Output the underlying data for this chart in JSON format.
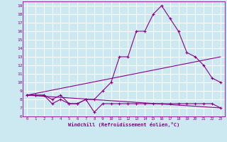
{
  "title": "",
  "xlabel": "Windchill (Refroidissement éolien,°C)",
  "bg_color": "#cce8f0",
  "line_color": "#880088",
  "grid_color": "#ffffff",
  "xlim": [
    -0.5,
    23.5
  ],
  "ylim": [
    6,
    19.5
  ],
  "xticks": [
    0,
    1,
    2,
    3,
    4,
    5,
    6,
    7,
    8,
    9,
    10,
    11,
    12,
    13,
    14,
    15,
    16,
    17,
    18,
    19,
    20,
    21,
    22,
    23
  ],
  "yticks": [
    6,
    7,
    8,
    9,
    10,
    11,
    12,
    13,
    14,
    15,
    16,
    17,
    18,
    19
  ],
  "curve1_x": [
    0,
    1,
    2,
    3,
    4,
    5,
    6,
    7,
    8,
    9,
    10,
    11,
    12,
    13,
    14,
    15,
    16,
    17,
    18,
    19,
    20,
    21,
    22,
    23
  ],
  "curve1_y": [
    8.5,
    8.5,
    8.5,
    8.0,
    8.5,
    7.5,
    7.5,
    8.0,
    8.0,
    9.0,
    10.0,
    13.0,
    13.0,
    16.0,
    16.0,
    18.0,
    19.0,
    17.5,
    16.0,
    13.5,
    13.0,
    12.0,
    10.5,
    10.0
  ],
  "curve2_x": [
    0,
    1,
    2,
    3,
    4,
    5,
    6,
    7,
    8,
    9,
    10,
    11,
    12,
    13,
    14,
    15,
    16,
    17,
    18,
    19,
    20,
    21,
    22,
    23
  ],
  "curve2_y": [
    8.5,
    8.5,
    8.5,
    7.5,
    8.0,
    7.5,
    7.5,
    8.0,
    6.5,
    7.5,
    7.5,
    7.5,
    7.5,
    7.5,
    7.5,
    7.5,
    7.5,
    7.5,
    7.5,
    7.5,
    7.5,
    7.5,
    7.5,
    7.0
  ],
  "curve3_x": [
    0,
    23
  ],
  "curve3_y": [
    8.5,
    13.0
  ],
  "curve4_x": [
    0,
    23
  ],
  "curve4_y": [
    8.5,
    7.0
  ]
}
